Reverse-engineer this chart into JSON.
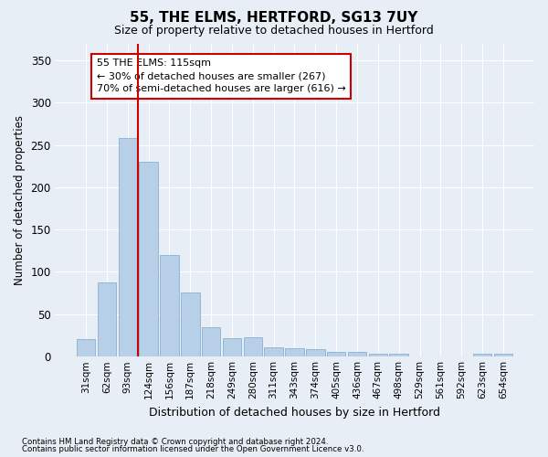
{
  "title": "55, THE ELMS, HERTFORD, SG13 7UY",
  "subtitle": "Size of property relative to detached houses in Hertford",
  "xlabel": "Distribution of detached houses by size in Hertford",
  "ylabel": "Number of detached properties",
  "footnote1": "Contains HM Land Registry data © Crown copyright and database right 2024.",
  "footnote2": "Contains public sector information licensed under the Open Government Licence v3.0.",
  "bar_color": "#b8cfe8",
  "bar_edge_color": "#7aaace",
  "background_color": "#e8eef5",
  "grid_color": "#ffffff",
  "vline_color": "#cc0000",
  "vline_x_index": 2.5,
  "annotation_text": "55 THE ELMS: 115sqm\n← 30% of detached houses are smaller (267)\n70% of semi-detached houses are larger (616) →",
  "annotation_box_color": "#ffffff",
  "annotation_box_edge": "#cc0000",
  "categories": [
    "31sqm",
    "62sqm",
    "93sqm",
    "124sqm",
    "156sqm",
    "187sqm",
    "218sqm",
    "249sqm",
    "280sqm",
    "311sqm",
    "343sqm",
    "374sqm",
    "405sqm",
    "436sqm",
    "467sqm",
    "498sqm",
    "529sqm",
    "561sqm",
    "592sqm",
    "623sqm",
    "654sqm"
  ],
  "values": [
    20,
    87,
    258,
    230,
    120,
    76,
    34,
    22,
    23,
    11,
    10,
    9,
    5,
    5,
    3,
    3,
    0,
    0,
    0,
    3,
    3
  ],
  "ylim": [
    0,
    370
  ],
  "yticks": [
    0,
    50,
    100,
    150,
    200,
    250,
    300,
    350
  ]
}
